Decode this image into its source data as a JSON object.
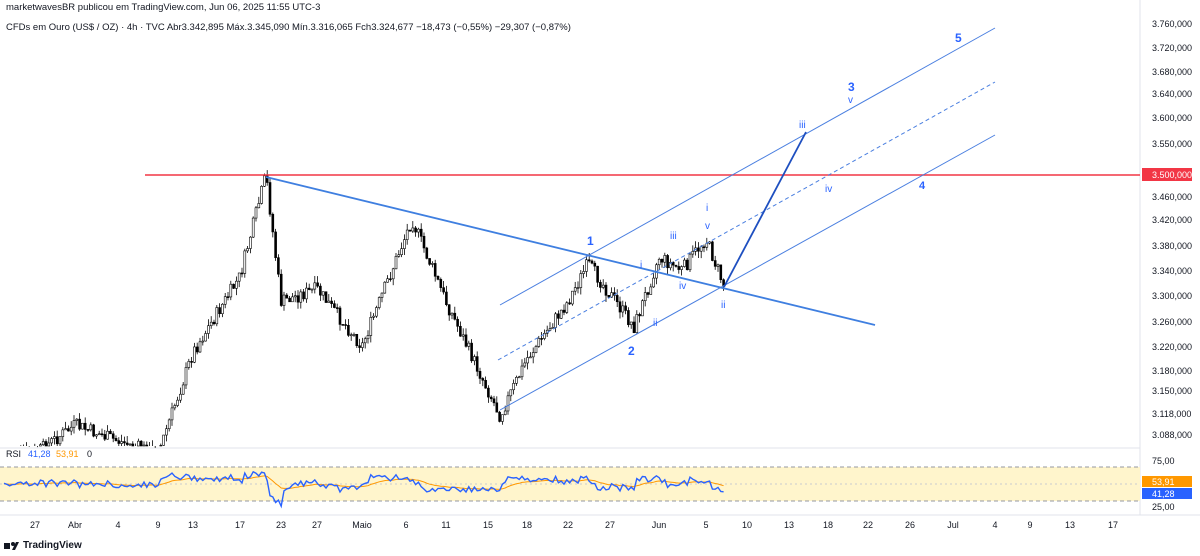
{
  "header": {
    "publisher": "marketwavesBR publicou em TradingView.com, Jun 06, 2025 11:55 UTC-3",
    "symbol_line": "CFDs em Ouro (US$ / OZ) · 4h · TVC  Abr3.342,895  Máx.3.345,090  Mín.3.316,065  Fch3.324,677  −18,473 (−0,55%)  −29,307 (−0,87%)"
  },
  "footer": {
    "brand": "TradingView"
  },
  "colors": {
    "up": "#000000",
    "down": "#000000",
    "channel": "#4a7fe0",
    "resistance": "#f23645",
    "rsi": "#2962ff",
    "rsi_ma": "#ff9800",
    "rsi_band": "#fff5cc"
  },
  "price_axis": {
    "labels": [
      "3.760,000",
      "3.720,000",
      "3.680,000",
      "3.640,000",
      "3.600,000",
      "3.550,000",
      "3.460,000",
      "3.420,000",
      "3.380,000",
      "3.340,000",
      "3.300,000",
      "3.260,000",
      "3.220,000",
      "3.180,000",
      "3.150,000",
      "3.118,000",
      "3.088,000"
    ],
    "resistance_label": "3.500,000"
  },
  "date_axis": {
    "labels": [
      "27",
      "Abr",
      "4",
      "9",
      "13",
      "17",
      "23",
      "27",
      "Maio",
      "6",
      "11",
      "15",
      "18",
      "22",
      "27",
      "Jun",
      "5",
      "10",
      "13",
      "18",
      "22",
      "26",
      "Jul",
      "4",
      "9",
      "13",
      "17"
    ]
  },
  "rsi": {
    "label": "RSI",
    "value": "41,28",
    "ma_value": "53,91",
    "extra": "0",
    "axis": [
      "75,00",
      "25,00"
    ],
    "badge_rsi": "41,28",
    "badge_ma": "53,91"
  },
  "waves": {
    "major": [
      "1",
      "2",
      "3",
      "4",
      "5"
    ],
    "minor": [
      "i",
      "ii",
      "iii",
      "iv",
      "v",
      "i",
      "ii",
      "iii",
      "iv",
      "v",
      "i",
      "ii",
      "iii",
      "iv",
      "v"
    ]
  },
  "chart_data": {
    "type": "candlestick",
    "title": "CFDs em Ouro (US$ / OZ) · 4h · TVC",
    "ylim": [
      3060,
      3780
    ],
    "resistance": 3500,
    "x": [
      "27",
      "Abr",
      "4",
      "9",
      "13",
      "17",
      "23",
      "27",
      "Maio",
      "6",
      "11",
      "15",
      "18",
      "22",
      "27",
      "Jun",
      "5",
      "10",
      "13",
      "18",
      "22",
      "26",
      "Jul",
      "4",
      "9",
      "13",
      "17"
    ],
    "anchor_points": [
      {
        "date": "27 Mar",
        "close": 3060
      },
      {
        "date": "Abr",
        "close": 3105
      },
      {
        "date": "4 Abr",
        "close": 3080
      },
      {
        "date": "9 Abr",
        "close": 3060
      },
      {
        "date": "13 Abr",
        "close": 3220
      },
      {
        "date": "17 Abr",
        "close": 3340
      },
      {
        "date": "22 Abr",
        "close": 3500
      },
      {
        "date": "23 Abr",
        "close": 3300
      },
      {
        "date": "27 Abr",
        "close": 3320
      },
      {
        "date": "Maio",
        "close": 3230
      },
      {
        "date": "6 Mai",
        "close": 3430
      },
      {
        "date": "11 Mai",
        "close": 3300
      },
      {
        "date": "15 Mai",
        "close": 3120
      },
      {
        "date": "18 Mai",
        "close": 3210
      },
      {
        "date": "22 Mai",
        "close": 3300
      },
      {
        "date": "25 Mai",
        "close": 3360
      },
      {
        "date": "29 Mai",
        "close": 3260
      },
      {
        "date": "Jun",
        "close": 3370
      },
      {
        "date": "3 Jun",
        "close": 3350
      },
      {
        "date": "5 Jun",
        "close": 3400
      },
      {
        "date": "6 Jun",
        "close": 3325
      }
    ]
  }
}
